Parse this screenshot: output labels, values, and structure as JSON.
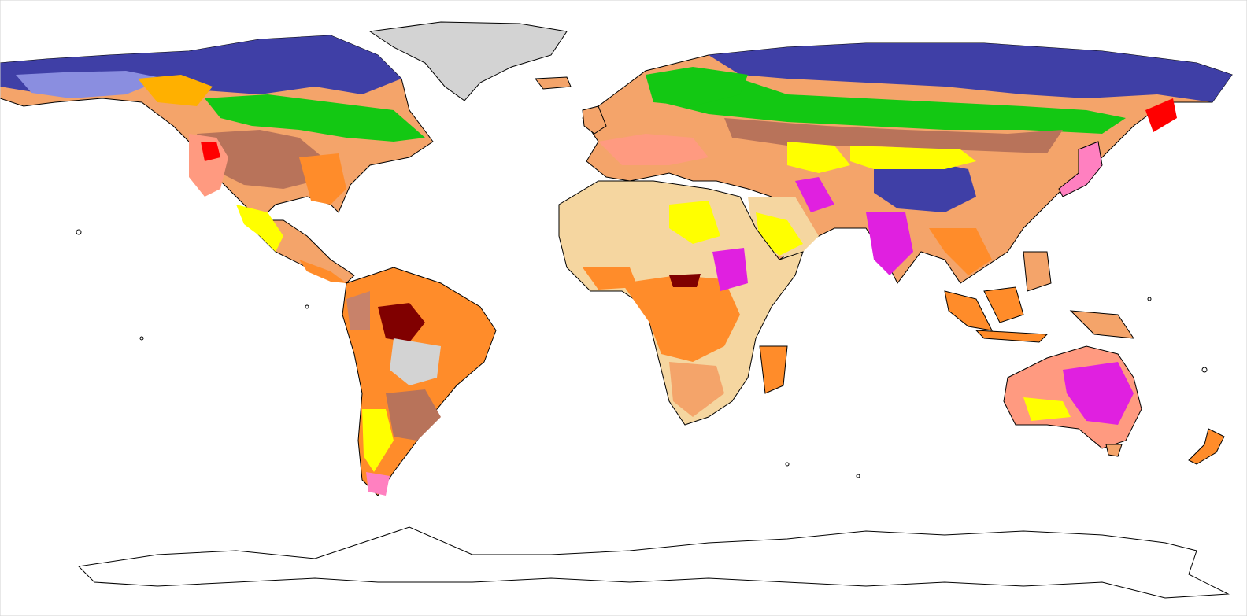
{
  "map": {
    "projection": "equirectangular",
    "background": "#ffffff",
    "outline_color": "#000000",
    "legend_colors": {
      "ice": "#d3d3d3",
      "tundra": "#3f3fa6",
      "tundra_light": "#8a8ee0",
      "boreal": "#13c813",
      "boreal_dark": "#2e8b2e",
      "temperate": "#f4a46a",
      "grassland": "#b8735a",
      "steppe": "#c8826a",
      "savanna": "#ff8c2a",
      "desert": "#f5d6a0",
      "desert_bright": "#ffff00",
      "shrub": "#ff9a80",
      "tropical_pink": "#ff80c0",
      "magenta": "#e020e0",
      "water": "#1010e0",
      "cyan": "#20d0ff",
      "red": "#ff0000",
      "maroon": "#800000"
    }
  }
}
